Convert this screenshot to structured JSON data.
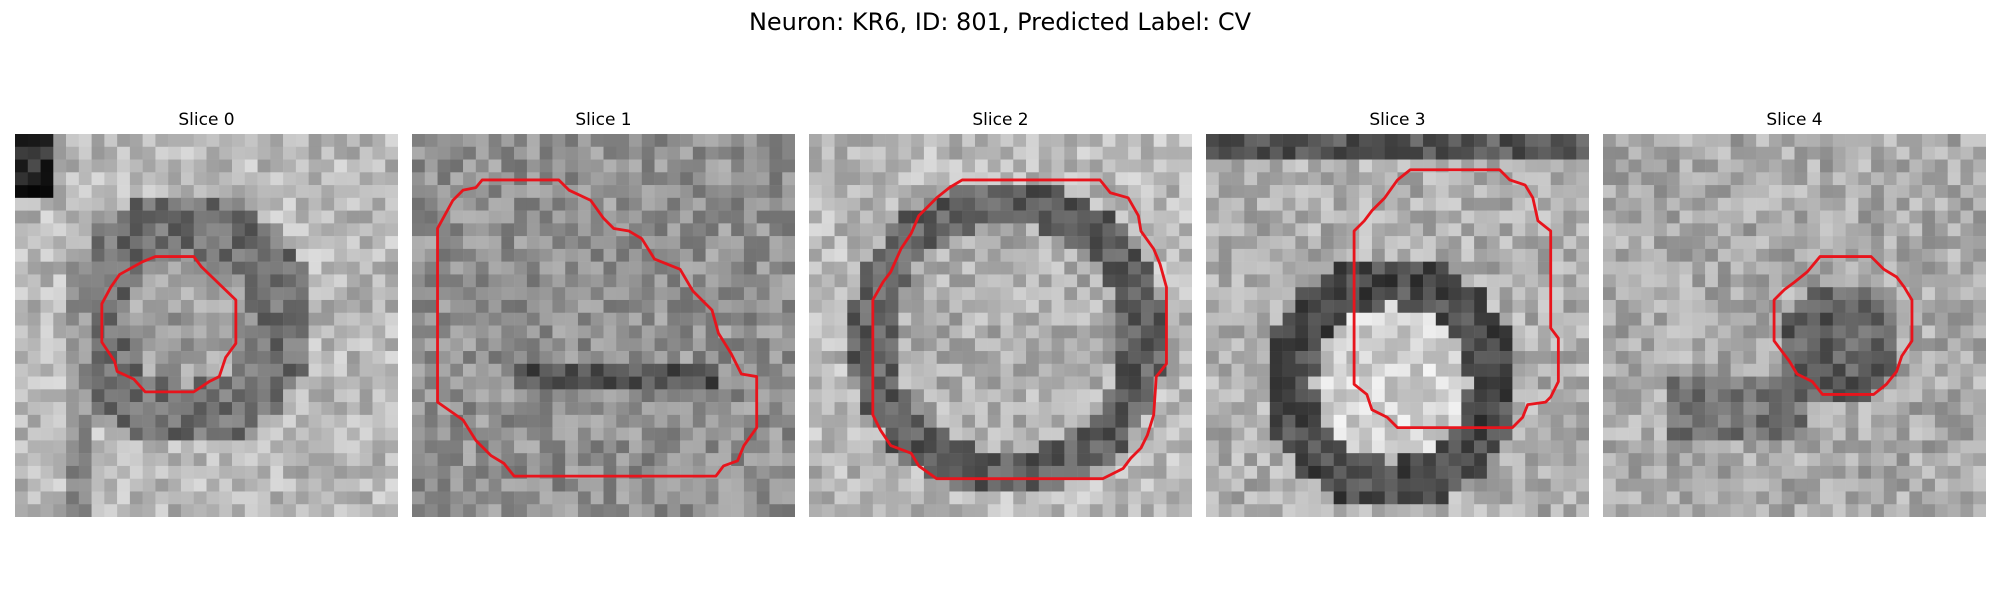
{
  "figure": {
    "title": "Neuron: KR6, ID: 801, Predicted Label: CV"
  },
  "colors": {
    "contour": "#e8141c"
  },
  "panels": [
    {
      "title": "Slice 0",
      "seed": 11,
      "tone": "light-with-dark-ring",
      "contour": "small-octagon-left"
    },
    {
      "title": "Slice 1",
      "seed": 23,
      "tone": "mottled",
      "contour": "large-irregular"
    },
    {
      "title": "Slice 2",
      "seed": 37,
      "tone": "ring",
      "contour": "large-octagon"
    },
    {
      "title": "Slice 3",
      "seed": 53,
      "tone": "dark-ring-bright-center",
      "contour": "tall-polygon"
    },
    {
      "title": "Slice 4",
      "seed": 71,
      "tone": "mottled-light",
      "contour": "small-octagon-right"
    }
  ]
}
